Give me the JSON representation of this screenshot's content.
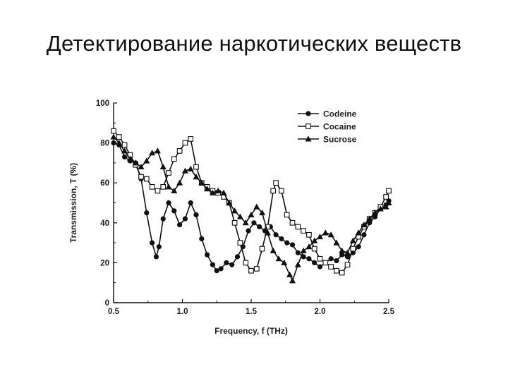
{
  "slide": {
    "title": "Детектирование наркотических веществ"
  },
  "chart_data": {
    "type": "line",
    "title": "",
    "xlabel": "Frequency, f (THz)",
    "ylabel": "Transmission, T (%)",
    "xlim": [
      0.5,
      2.5
    ],
    "ylim": [
      0,
      100
    ],
    "xticks": [
      "0.5",
      "1.0",
      "1.5",
      "2.0",
      "2.5"
    ],
    "yticks": [
      "0",
      "20",
      "40",
      "60",
      "80",
      "100"
    ],
    "grid": false,
    "legend_position": "top-right",
    "series": [
      {
        "name": "Codeine",
        "marker": "circle-filled",
        "x": [
          0.5,
          0.54,
          0.58,
          0.62,
          0.66,
          0.7,
          0.74,
          0.78,
          0.81,
          0.83,
          0.86,
          0.9,
          0.94,
          0.98,
          1.02,
          1.06,
          1.1,
          1.14,
          1.18,
          1.22,
          1.25,
          1.28,
          1.32,
          1.36,
          1.4,
          1.44,
          1.48,
          1.52,
          1.56,
          1.6,
          1.64,
          1.68,
          1.72,
          1.76,
          1.8,
          1.84,
          1.88,
          1.92,
          1.96,
          2.0,
          2.04,
          2.08,
          2.12,
          2.16,
          2.2,
          2.24,
          2.28,
          2.32,
          2.36,
          2.4,
          2.44,
          2.48,
          2.5
        ],
        "y": [
          80,
          79,
          73,
          71,
          70,
          62,
          45,
          30,
          23,
          28,
          42,
          50,
          46,
          39,
          42,
          50,
          44,
          32,
          24,
          19,
          16,
          17,
          20,
          19,
          23,
          28,
          36,
          40,
          38,
          36,
          38,
          34,
          32,
          30,
          29,
          25,
          23,
          22,
          20,
          18,
          20,
          22,
          21,
          24,
          23,
          25,
          28,
          34,
          40,
          43,
          47,
          49,
          51
        ]
      },
      {
        "name": "Cocaine",
        "marker": "square-open",
        "x": [
          0.5,
          0.54,
          0.58,
          0.62,
          0.66,
          0.7,
          0.74,
          0.78,
          0.82,
          0.86,
          0.9,
          0.94,
          0.98,
          1.02,
          1.06,
          1.1,
          1.14,
          1.18,
          1.22,
          1.26,
          1.3,
          1.34,
          1.38,
          1.42,
          1.46,
          1.5,
          1.54,
          1.58,
          1.62,
          1.66,
          1.68,
          1.72,
          1.76,
          1.8,
          1.84,
          1.88,
          1.92,
          1.96,
          2.0,
          2.04,
          2.08,
          2.12,
          2.16,
          2.2,
          2.24,
          2.28,
          2.32,
          2.36,
          2.4,
          2.44,
          2.48,
          2.5
        ],
        "y": [
          86,
          83,
          79,
          74,
          69,
          63,
          62,
          58,
          56,
          58,
          65,
          72,
          76,
          80,
          82,
          68,
          60,
          58,
          56,
          55,
          53,
          50,
          40,
          30,
          20,
          16,
          17,
          27,
          38,
          56,
          60,
          56,
          44,
          40,
          38,
          36,
          34,
          27,
          22,
          20,
          18,
          16,
          15,
          19,
          27,
          33,
          38,
          42,
          45,
          48,
          53,
          56
        ]
      },
      {
        "name": "Sucrose",
        "marker": "triangle-filled",
        "x": [
          0.5,
          0.54,
          0.58,
          0.62,
          0.66,
          0.7,
          0.74,
          0.78,
          0.82,
          0.86,
          0.9,
          0.94,
          0.98,
          1.02,
          1.06,
          1.1,
          1.14,
          1.18,
          1.22,
          1.26,
          1.3,
          1.34,
          1.38,
          1.42,
          1.46,
          1.5,
          1.54,
          1.58,
          1.62,
          1.66,
          1.7,
          1.74,
          1.78,
          1.8,
          1.84,
          1.88,
          1.92,
          1.96,
          2.0,
          2.04,
          2.08,
          2.12,
          2.16,
          2.2,
          2.24,
          2.28,
          2.32,
          2.36,
          2.4,
          2.44,
          2.48,
          2.5
        ],
        "y": [
          83,
          80,
          76,
          72,
          70,
          68,
          71,
          75,
          76,
          68,
          58,
          56,
          60,
          66,
          67,
          63,
          60,
          57,
          55,
          56,
          55,
          50,
          46,
          43,
          40,
          44,
          48,
          45,
          35,
          26,
          22,
          20,
          14,
          11,
          19,
          26,
          28,
          31,
          33,
          35,
          34,
          30,
          26,
          25,
          31,
          35,
          39,
          42,
          45,
          47,
          48,
          50
        ]
      }
    ]
  }
}
